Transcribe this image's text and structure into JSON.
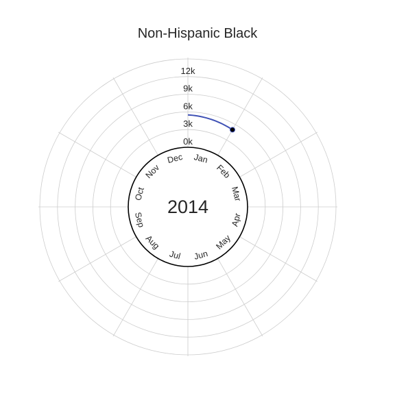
{
  "chart_data": {
    "type": "line",
    "subtype": "polar-spiral",
    "title": "Non-Hispanic Black",
    "center_label": "2014",
    "r_tick_labels": [
      "0k",
      "3k",
      "6k",
      "9k",
      "12k"
    ],
    "r_ticks": [
      0,
      3000,
      6000,
      9000,
      12000
    ],
    "rlim": [
      0,
      12000
    ],
    "month_labels": [
      "Jan",
      "Feb",
      "Mar",
      "Apr",
      "May",
      "Jun",
      "Jul",
      "Aug",
      "Sep",
      "Oct",
      "Nov",
      "Dec"
    ],
    "grid": true,
    "series": [
      {
        "x": [
          "Jan 2014",
          "Feb 2014"
        ],
        "values": [
          5500,
          5000
        ]
      }
    ],
    "colors": {
      "line": "#3f51b5",
      "marker": "#000000",
      "grid": "#cccccc",
      "inner_circle": "#000000",
      "text": "#262626"
    }
  }
}
